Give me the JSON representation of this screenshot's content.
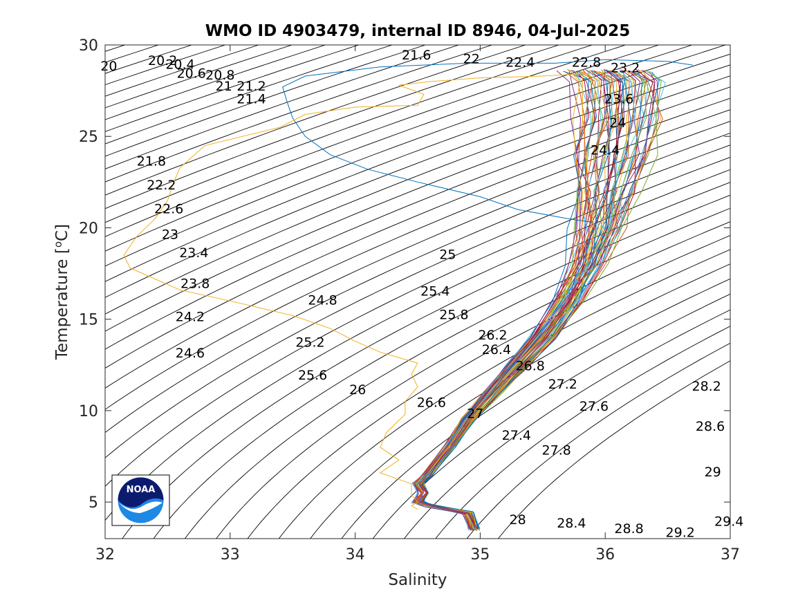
{
  "chart_data": {
    "type": "line",
    "title": "WMO ID 4903479, internal ID 8946, 04-Jul-2025",
    "xlabel": "Salinity",
    "ylabel_main": "Temperature [",
    "ylabel_sup": "o",
    "ylabel_end": "C]",
    "xlim": [
      32,
      37
    ],
    "ylim": [
      3,
      30
    ],
    "x_ticks": [
      32,
      33,
      34,
      35,
      36,
      37
    ],
    "y_ticks": [
      5,
      10,
      15,
      20,
      25,
      30
    ],
    "grid": false,
    "isopycnals": {
      "levels_from": 20,
      "levels_to": 29.4,
      "step": 0.2,
      "color": "#000000"
    },
    "contour_labels": [
      {
        "text": "20",
        "s": 32.03,
        "t": 28.6
      },
      {
        "text": "20.2",
        "s": 32.46,
        "t": 28.9
      },
      {
        "text": "20.4",
        "s": 32.6,
        "t": 28.7
      },
      {
        "text": "20.6",
        "s": 32.69,
        "t": 28.2
      },
      {
        "text": "20.8",
        "s": 32.92,
        "t": 28.1
      },
      {
        "text": "21",
        "s": 32.95,
        "t": 27.5
      },
      {
        "text": "21.2",
        "s": 33.17,
        "t": 27.5
      },
      {
        "text": "21.4",
        "s": 33.17,
        "t": 26.8
      },
      {
        "text": "21.6",
        "s": 34.49,
        "t": 29.2
      },
      {
        "text": "22",
        "s": 34.93,
        "t": 29.0
      },
      {
        "text": "22.4",
        "s": 35.32,
        "t": 28.8
      },
      {
        "text": "22.8",
        "s": 35.85,
        "t": 28.8
      },
      {
        "text": "23.2",
        "s": 36.16,
        "t": 28.5
      },
      {
        "text": "23.6",
        "s": 36.11,
        "t": 26.8
      },
      {
        "text": "24",
        "s": 36.1,
        "t": 25.5
      },
      {
        "text": "24.4",
        "s": 36.0,
        "t": 24.0
      },
      {
        "text": "21.8",
        "s": 32.37,
        "t": 23.4
      },
      {
        "text": "22.2",
        "s": 32.45,
        "t": 22.1
      },
      {
        "text": "22.6",
        "s": 32.51,
        "t": 20.8
      },
      {
        "text": "23",
        "s": 32.52,
        "t": 19.4
      },
      {
        "text": "23.4",
        "s": 32.71,
        "t": 18.4
      },
      {
        "text": "23.8",
        "s": 32.72,
        "t": 16.7
      },
      {
        "text": "24.2",
        "s": 32.68,
        "t": 14.9
      },
      {
        "text": "24.6",
        "s": 32.68,
        "t": 12.9
      },
      {
        "text": "24.8",
        "s": 33.74,
        "t": 15.8
      },
      {
        "text": "25",
        "s": 34.74,
        "t": 18.3
      },
      {
        "text": "25.2",
        "s": 33.64,
        "t": 13.5
      },
      {
        "text": "25.4",
        "s": 34.64,
        "t": 16.3
      },
      {
        "text": "25.6",
        "s": 33.66,
        "t": 11.7
      },
      {
        "text": "25.8",
        "s": 34.79,
        "t": 15.0
      },
      {
        "text": "26",
        "s": 34.02,
        "t": 10.9
      },
      {
        "text": "26.2",
        "s": 35.1,
        "t": 13.9
      },
      {
        "text": "26.4",
        "s": 35.13,
        "t": 13.1
      },
      {
        "text": "26.6",
        "s": 34.61,
        "t": 10.2
      },
      {
        "text": "26.8",
        "s": 35.4,
        "t": 12.2
      },
      {
        "text": "27",
        "s": 34.96,
        "t": 9.6
      },
      {
        "text": "27.2",
        "s": 35.66,
        "t": 11.2
      },
      {
        "text": "27.4",
        "s": 35.29,
        "t": 8.4
      },
      {
        "text": "27.6",
        "s": 35.91,
        "t": 10.0
      },
      {
        "text": "27.8",
        "s": 35.61,
        "t": 7.6
      },
      {
        "text": "28",
        "s": 35.3,
        "t": 3.8
      },
      {
        "text": "28.2",
        "s": 36.81,
        "t": 11.1
      },
      {
        "text": "28.4",
        "s": 35.73,
        "t": 3.6
      },
      {
        "text": "28.6",
        "s": 36.84,
        "t": 8.9
      },
      {
        "text": "28.8",
        "s": 36.19,
        "t": 3.3
      },
      {
        "text": "29",
        "s": 36.86,
        "t": 6.4
      },
      {
        "text": "29.2",
        "s": 36.6,
        "t": 3.1
      },
      {
        "text": "29.4",
        "s": 36.99,
        "t": 3.7
      }
    ],
    "series_colors": [
      "#0072bd",
      "#d95319",
      "#edb120",
      "#7e2f8e",
      "#77ac30",
      "#4dbeee",
      "#a2142f"
    ],
    "deep_profile": [
      [
        34.95,
        3.5
      ],
      [
        34.9,
        4.4
      ],
      [
        34.6,
        4.8
      ],
      [
        34.5,
        5.0
      ],
      [
        34.55,
        5.5
      ],
      [
        34.5,
        6.0
      ],
      [
        34.58,
        6.5
      ],
      [
        34.75,
        8.0
      ],
      [
        34.9,
        9.5
      ],
      [
        35.1,
        11.0
      ],
      [
        35.3,
        12.5
      ],
      [
        35.5,
        14.0
      ],
      [
        35.7,
        16.0
      ],
      [
        35.85,
        18.0
      ],
      [
        35.95,
        20.0
      ],
      [
        36.0,
        22.0
      ],
      [
        36.05,
        24.0
      ],
      [
        36.1,
        26.0
      ],
      [
        36.1,
        28.0
      ],
      [
        36.0,
        28.6
      ]
    ],
    "blue_outlier": [
      [
        35.9,
        20.3
      ],
      [
        35.7,
        20.5
      ],
      [
        35.3,
        21.0
      ],
      [
        35.0,
        21.7
      ],
      [
        34.5,
        22.5
      ],
      [
        34.1,
        23.2
      ],
      [
        33.8,
        24.0
      ],
      [
        33.6,
        25.0
      ],
      [
        33.5,
        26.0
      ],
      [
        33.45,
        27.0
      ],
      [
        33.42,
        27.7
      ],
      [
        33.6,
        28.3
      ],
      [
        34.2,
        28.8
      ],
      [
        34.9,
        29.0
      ],
      [
        35.6,
        29.0
      ],
      [
        36.0,
        29.2
      ],
      [
        36.5,
        29.1
      ],
      [
        36.7,
        28.9
      ]
    ],
    "orange_outlier": [
      [
        34.5,
        4.6
      ],
      [
        34.45,
        4.8
      ],
      [
        34.5,
        5.0
      ],
      [
        34.45,
        5.4
      ],
      [
        34.45,
        6.0
      ],
      [
        34.2,
        6.6
      ],
      [
        34.35,
        7.3
      ],
      [
        34.2,
        8.0
      ],
      [
        34.25,
        8.8
      ],
      [
        34.4,
        9.8
      ],
      [
        34.4,
        10.5
      ],
      [
        34.5,
        11.3
      ],
      [
        34.45,
        12.0
      ],
      [
        34.5,
        12.6
      ],
      [
        34.2,
        13.2
      ],
      [
        34.0,
        13.8
      ],
      [
        33.8,
        14.5
      ],
      [
        33.5,
        15.2
      ],
      [
        33.0,
        16.0
      ],
      [
        32.6,
        16.6
      ],
      [
        32.4,
        17.2
      ],
      [
        32.2,
        17.8
      ],
      [
        32.15,
        18.5
      ],
      [
        32.25,
        19.5
      ],
      [
        32.4,
        20.5
      ],
      [
        32.5,
        21.5
      ],
      [
        32.55,
        22.5
      ],
      [
        32.6,
        23.3
      ],
      [
        32.8,
        24.5
      ],
      [
        33.1,
        25.0
      ],
      [
        33.4,
        25.5
      ],
      [
        33.6,
        26.2
      ],
      [
        34.0,
        26.6
      ],
      [
        34.5,
        26.7
      ],
      [
        34.55,
        27.3
      ],
      [
        34.35,
        27.8
      ],
      [
        34.6,
        28.0
      ],
      [
        35.0,
        28.2
      ],
      [
        35.5,
        28.3
      ],
      [
        36.0,
        28.5
      ]
    ]
  }
}
